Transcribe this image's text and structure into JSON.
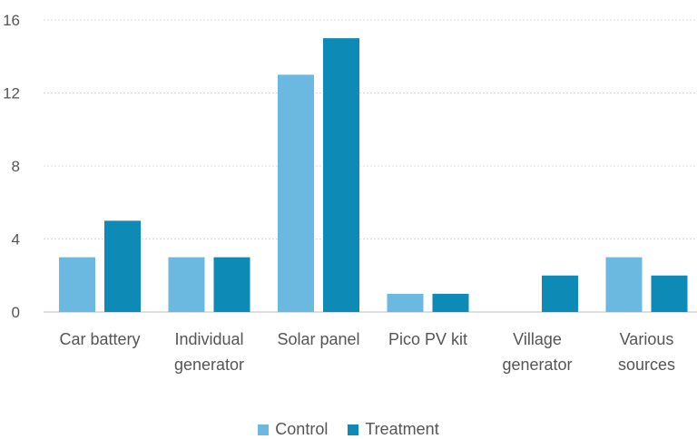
{
  "chart_data": {
    "type": "bar",
    "categories": [
      [
        "Car battery"
      ],
      [
        "Individual",
        "generator"
      ],
      [
        "Solar panel"
      ],
      [
        "Pico PV kit"
      ],
      [
        "Village",
        "generator"
      ],
      [
        "Various",
        "sources"
      ]
    ],
    "series": [
      {
        "name": "Control",
        "values": [
          3,
          3,
          13,
          1,
          0,
          3
        ],
        "color": "#6bb8e0"
      },
      {
        "name": "Treatment",
        "values": [
          5,
          3,
          15,
          1,
          2,
          2
        ],
        "color": "#0d8ab5"
      }
    ],
    "yticks": [
      "0",
      "4",
      "8",
      "12",
      "16"
    ],
    "ylim": [
      0,
      16
    ],
    "grid": true,
    "legend_position": "bottom-center"
  }
}
